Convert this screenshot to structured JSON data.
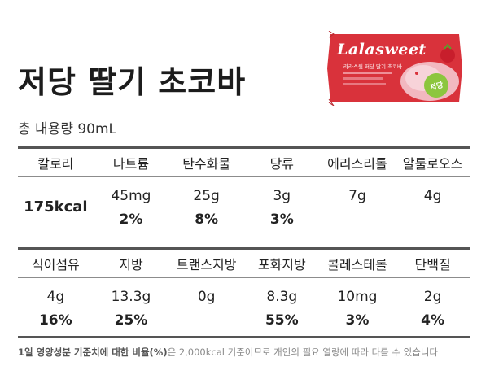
{
  "product": {
    "title": "저당 딸기 초코바",
    "volume": "총 내용량 90mL",
    "brand": "Lalasweet",
    "package_subtitle": "라라스윗 저당 딸기 초코바",
    "package_badge": "저당"
  },
  "colors": {
    "package_red": "#d9323b",
    "package_pink": "#f2b8c0",
    "badge_green": "#8cc63e",
    "rule_dark": "#555555"
  },
  "table": {
    "row1": {
      "headers": [
        "칼로리",
        "나트륨",
        "탄수화물",
        "당류",
        "에리스리톨",
        "알룰로오스"
      ],
      "amounts": [
        "175kcal",
        "45mg",
        "25g",
        "3g",
        "7g",
        "4g"
      ],
      "percents": [
        "",
        "2%",
        "8%",
        "3%",
        "",
        ""
      ]
    },
    "row2": {
      "headers": [
        "식이섬유",
        "지방",
        "트랜스지방",
        "포화지방",
        "콜레스테롤",
        "단백질"
      ],
      "amounts": [
        "4g",
        "13.3g",
        "0g",
        "8.3g",
        "10mg",
        "2g"
      ],
      "percents": [
        "16%",
        "25%",
        "",
        "55%",
        "3%",
        "4%"
      ]
    }
  },
  "footnote": {
    "bold": "1일 영양성분 기준치에 대한 비율(%)",
    "rest": "은 2,000kcal 기준이므로 개인의 필요 열량에 따라 다를 수 있습니다"
  }
}
